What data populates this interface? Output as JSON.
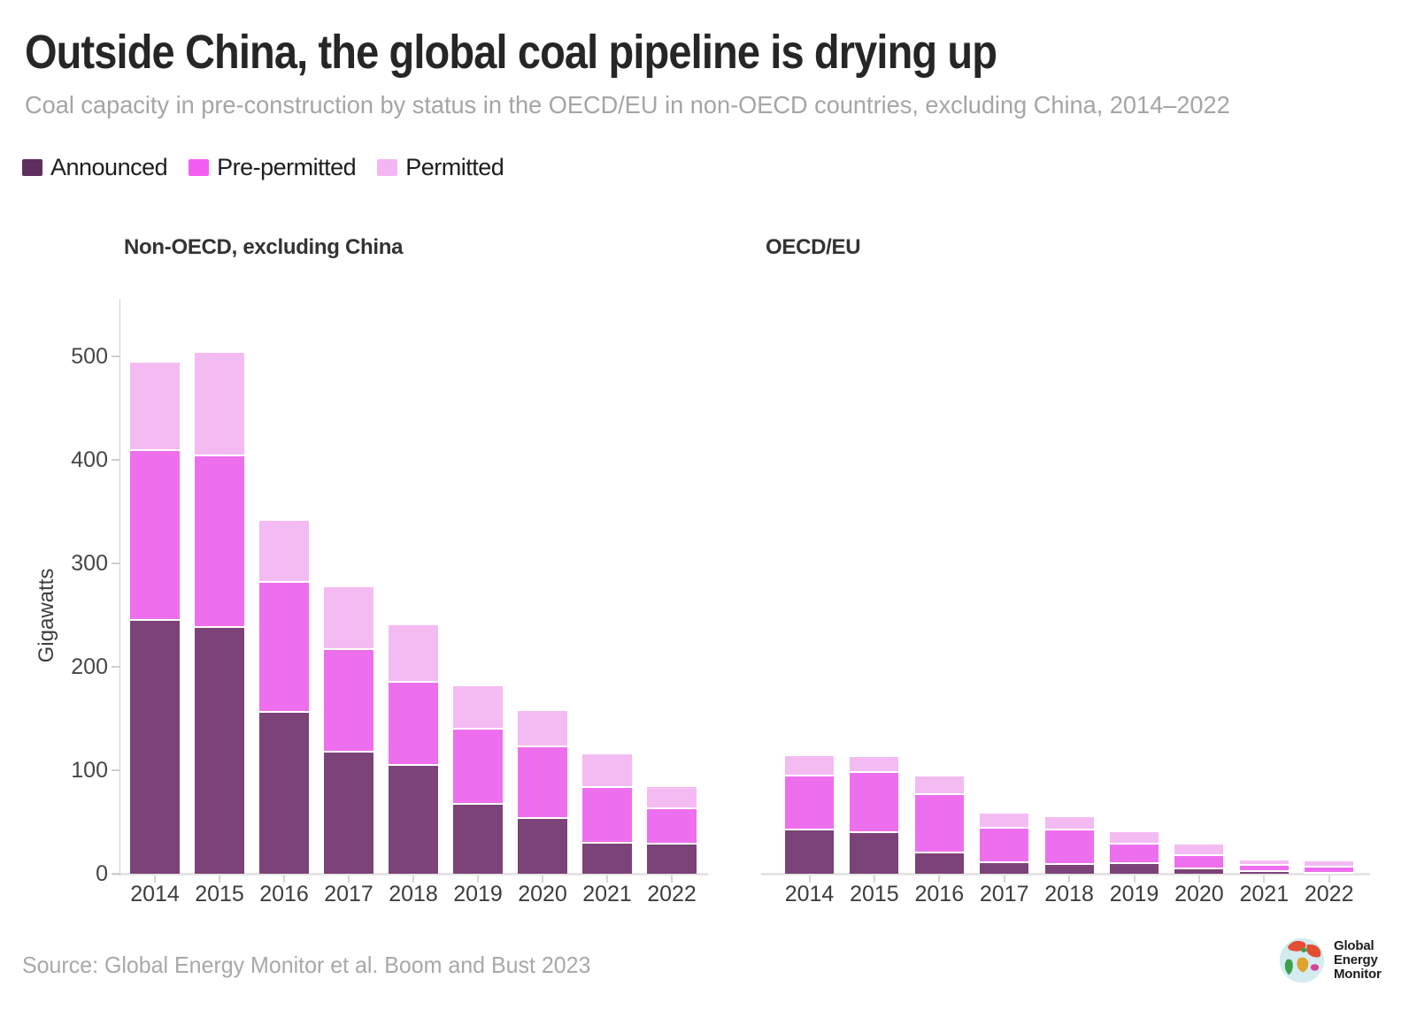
{
  "header": {
    "title": "Outside China, the global coal pipeline is drying up",
    "subtitle": "Coal capacity in pre-construction by status in the OECD/EU in non-OECD countries, excluding China, 2014–2022"
  },
  "legend": {
    "items": [
      {
        "label": "Announced",
        "color": "#5e2e5e"
      },
      {
        "label": "Pre-permitted",
        "color": "#f15ef1"
      },
      {
        "label": "Permitted",
        "color": "#f4b6f3"
      }
    ]
  },
  "colors": {
    "announced_bar": "#7b4377",
    "pre_permitted_bar": "#ee6fee",
    "permitted_bar": "#f4bbf2",
    "axis_line": "#e5e5e5",
    "tick_text": "#464646",
    "muted_text": "#a8a8a8",
    "title_text": "#262626"
  },
  "chart_data": [
    {
      "type": "bar",
      "stacked": true,
      "title": "Non-OECD, excluding China",
      "xlabel": "",
      "ylabel": "Gigawatts",
      "ylim": [
        0,
        500
      ],
      "yticks": [
        0,
        100,
        200,
        300,
        400,
        500
      ],
      "grid": false,
      "legend_position": "top",
      "categories": [
        "2014",
        "2015",
        "2016",
        "2017",
        "2018",
        "2019",
        "2020",
        "2021",
        "2022"
      ],
      "series": [
        {
          "name": "Announced",
          "color": "#7b4377",
          "values": [
            246,
            239,
            157,
            119,
            106,
            68,
            55,
            31,
            30
          ]
        },
        {
          "name": "Pre-permitted",
          "color": "#ee6fee",
          "values": [
            164,
            166,
            126,
            99,
            80,
            73,
            69,
            54,
            34
          ]
        },
        {
          "name": "Permitted",
          "color": "#f4bbf2",
          "values": [
            84,
            98,
            58,
            59,
            54,
            40,
            33,
            30,
            20
          ]
        }
      ],
      "totals": [
        494,
        503,
        341,
        277,
        240,
        181,
        157,
        115,
        84
      ]
    },
    {
      "type": "bar",
      "stacked": true,
      "title": "OECD/EU",
      "xlabel": "",
      "ylabel": "Gigawatts",
      "ylim": [
        0,
        500
      ],
      "yticks": [
        0,
        100,
        200,
        300,
        400,
        500
      ],
      "grid": false,
      "legend_position": "top",
      "categories": [
        "2014",
        "2015",
        "2016",
        "2017",
        "2018",
        "2019",
        "2020",
        "2021",
        "2022"
      ],
      "series": [
        {
          "name": "Announced",
          "color": "#7b4377",
          "values": [
            44,
            41,
            21,
            12,
            10,
            11,
            6,
            3,
            2
          ]
        },
        {
          "name": "Pre-permitted",
          "color": "#ee6fee",
          "values": [
            52,
            58,
            57,
            33,
            34,
            19,
            13,
            6,
            6
          ]
        },
        {
          "name": "Permitted",
          "color": "#f4bbf2",
          "values": [
            18,
            14,
            16,
            13,
            11,
            10,
            9,
            4,
            4
          ]
        }
      ],
      "totals": [
        114,
        113,
        94,
        58,
        55,
        40,
        28,
        13,
        12
      ]
    }
  ],
  "footer": {
    "source": "Source: Global Energy Monitor et al. Boom and Bust 2023",
    "logo_lines": [
      "Global",
      "Energy",
      "Monitor"
    ]
  }
}
